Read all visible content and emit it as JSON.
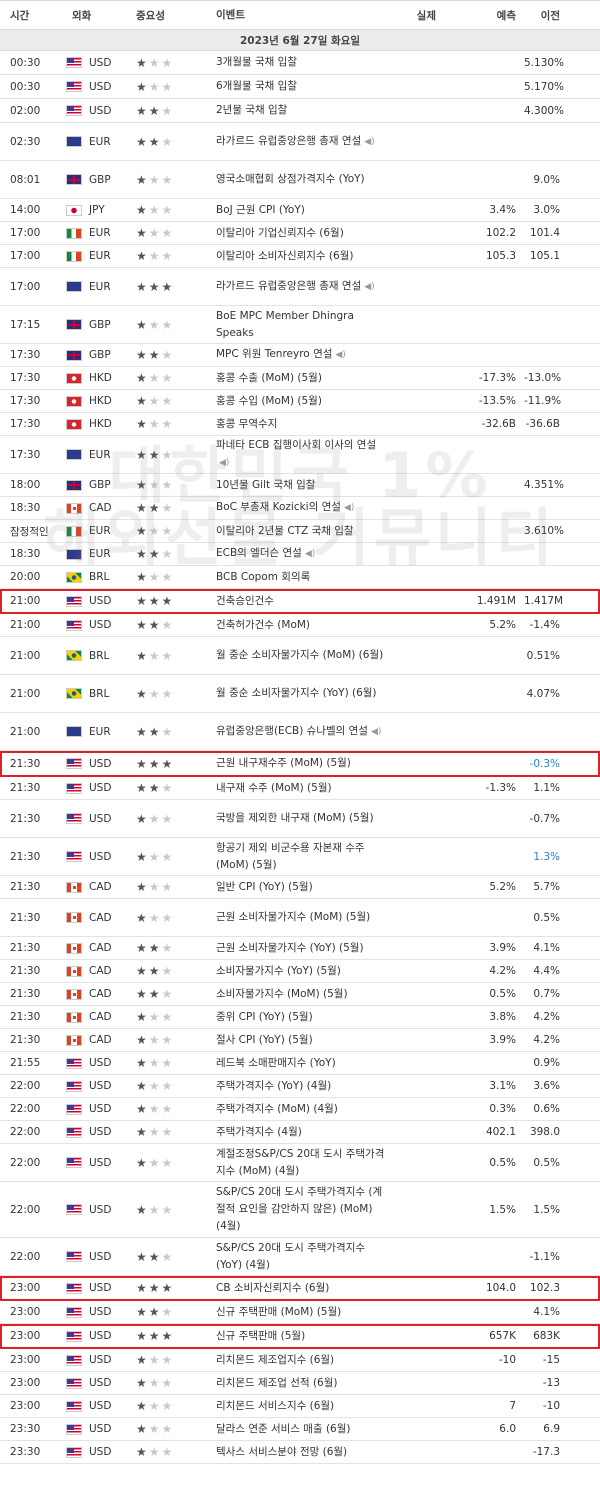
{
  "headers": {
    "time": "시간",
    "currency": "외화",
    "importance": "중요성",
    "event": "이벤트",
    "actual": "실제",
    "forecast": "예측",
    "previous": "이전"
  },
  "date": "2023년 6월 27일 화요일",
  "watermark": {
    "line1": "대한민국 1%",
    "line2": "해외선물 커뮤니티"
  },
  "rows": [
    {
      "time": "00:30",
      "flag": "us",
      "cur": "USD",
      "stars": 1,
      "event": "3개월물 국채 입찰",
      "actual": "",
      "forecast": "",
      "previous": "5.130%",
      "h": 24
    },
    {
      "time": "00:30",
      "flag": "us",
      "cur": "USD",
      "stars": 1,
      "event": "6개월물 국채 입찰",
      "actual": "",
      "forecast": "",
      "previous": "5.170%",
      "h": 24
    },
    {
      "time": "02:00",
      "flag": "us",
      "cur": "USD",
      "stars": 2,
      "event": "2년물 국채 입찰",
      "actual": "",
      "forecast": "",
      "previous": "4.300%",
      "h": 24
    },
    {
      "time": "02:30",
      "flag": "eu",
      "cur": "EUR",
      "stars": 2,
      "event": "라가르드 유럽중앙은행 총재 연설",
      "actual": "",
      "forecast": "",
      "previous": "",
      "h": 38,
      "spk": true
    },
    {
      "time": "08:01",
      "flag": "gb",
      "cur": "GBP",
      "stars": 1,
      "event": "영국소매협회 상점가격지수 (YoY)",
      "actual": "",
      "forecast": "",
      "previous": "9.0%",
      "h": 38
    },
    {
      "time": "14:00",
      "flag": "jp",
      "cur": "JPY",
      "stars": 1,
      "event": "BoJ 근원 CPI (YoY)",
      "actual": "",
      "forecast": "3.4%",
      "previous": "3.0%",
      "h": 23
    },
    {
      "time": "17:00",
      "flag": "it",
      "cur": "EUR",
      "stars": 1,
      "event": "이탈리아 기업신뢰지수 (6월)",
      "actual": "",
      "forecast": "102.2",
      "previous": "101.4",
      "h": 23
    },
    {
      "time": "17:00",
      "flag": "it",
      "cur": "EUR",
      "stars": 1,
      "event": "이탈리아 소비자신뢰지수 (6월)",
      "actual": "",
      "forecast": "105.3",
      "previous": "105.1",
      "h": 23
    },
    {
      "time": "17:00",
      "flag": "eu",
      "cur": "EUR",
      "stars": 3,
      "event": "라가르드 유럽중앙은행 총재 연설",
      "actual": "",
      "forecast": "",
      "previous": "",
      "h": 38,
      "spk": true
    },
    {
      "time": "17:15",
      "flag": "gb",
      "cur": "GBP",
      "stars": 1,
      "event": "BoE MPC Member Dhingra Speaks",
      "actual": "",
      "forecast": "",
      "previous": "",
      "h": 38
    },
    {
      "time": "17:30",
      "flag": "gb",
      "cur": "GBP",
      "stars": 2,
      "event": "MPC 위원 Tenreyro 연설",
      "actual": "",
      "forecast": "",
      "previous": "",
      "h": 23,
      "spk": true
    },
    {
      "time": "17:30",
      "flag": "hk",
      "cur": "HKD",
      "stars": 1,
      "event": "홍콩 수출 (MoM) (5월)",
      "actual": "",
      "forecast": "-17.3%",
      "previous": "-13.0%",
      "h": 23
    },
    {
      "time": "17:30",
      "flag": "hk",
      "cur": "HKD",
      "stars": 1,
      "event": "홍콩 수입 (MoM) (5월)",
      "actual": "",
      "forecast": "-13.5%",
      "previous": "-11.9%",
      "h": 23
    },
    {
      "time": "17:30",
      "flag": "hk",
      "cur": "HKD",
      "stars": 1,
      "event": "홍콩 무역수지",
      "actual": "",
      "forecast": "-32.6B",
      "previous": "-36.6B",
      "h": 23
    },
    {
      "time": "17:30",
      "flag": "eu",
      "cur": "EUR",
      "stars": 2,
      "event": "파네타 ECB 집행이사회 이사의 연설",
      "actual": "",
      "forecast": "",
      "previous": "",
      "h": 38,
      "spk": true
    },
    {
      "time": "18:00",
      "flag": "gb",
      "cur": "GBP",
      "stars": 1,
      "event": "10년물 Gilt 국채 입찰",
      "actual": "",
      "forecast": "",
      "previous": "4.351%",
      "h": 23
    },
    {
      "time": "18:30",
      "flag": "ca",
      "cur": "CAD",
      "stars": 2,
      "event": "BoC 부총재 Kozicki의 연설",
      "actual": "",
      "forecast": "",
      "previous": "",
      "h": 23,
      "spk": true
    },
    {
      "time": "잠정적인",
      "flag": "it",
      "cur": "EUR",
      "stars": 1,
      "event": "이탈리아 2년물 CTZ 국채 입찰",
      "actual": "",
      "forecast": "",
      "previous": "3.610%",
      "h": 23
    },
    {
      "time": "18:30",
      "flag": "eu",
      "cur": "EUR",
      "stars": 2,
      "event": "ECB의 엘더슨 연설",
      "actual": "",
      "forecast": "",
      "previous": "",
      "h": 23,
      "spk": true
    },
    {
      "time": "20:00",
      "flag": "br",
      "cur": "BRL",
      "stars": 1,
      "event": "BCB Copom 회의록",
      "actual": "",
      "forecast": "",
      "previous": "",
      "h": 23
    },
    {
      "time": "21:00",
      "flag": "us",
      "cur": "USD",
      "stars": 3,
      "event": "건축승인건수",
      "actual": "",
      "forecast": "1.491M",
      "previous": "1.417M",
      "h": 25,
      "hl": true
    },
    {
      "time": "21:00",
      "flag": "us",
      "cur": "USD",
      "stars": 2,
      "event": "건축허가건수 (MoM)",
      "actual": "",
      "forecast": "5.2%",
      "previous": "-1.4%",
      "h": 23
    },
    {
      "time": "21:00",
      "flag": "br",
      "cur": "BRL",
      "stars": 1,
      "event": "월 중순 소비자물가지수 (MoM) (6월)",
      "actual": "",
      "forecast": "",
      "previous": "0.51%",
      "h": 38
    },
    {
      "time": "21:00",
      "flag": "br",
      "cur": "BRL",
      "stars": 1,
      "event": "월 중순 소비자물가지수 (YoY) (6월)",
      "actual": "",
      "forecast": "",
      "previous": "4.07%",
      "h": 38
    },
    {
      "time": "21:00",
      "flag": "eu",
      "cur": "EUR",
      "stars": 2,
      "event": "유럽중앙은행(ECB) 슈나벨의 연설",
      "actual": "",
      "forecast": "",
      "previous": "",
      "h": 38,
      "spk": true
    },
    {
      "time": "21:30",
      "flag": "us",
      "cur": "USD",
      "stars": 3,
      "event": "근원 내구재수주 (MoM) (5월)",
      "actual": "",
      "forecast": "",
      "previous": "-0.3%",
      "prevBlue": true,
      "h": 26,
      "hl": true
    },
    {
      "time": "21:30",
      "flag": "us",
      "cur": "USD",
      "stars": 2,
      "event": "내구재 수주 (MoM) (5월)",
      "actual": "",
      "forecast": "-1.3%",
      "previous": "1.1%",
      "h": 23
    },
    {
      "time": "21:30",
      "flag": "us",
      "cur": "USD",
      "stars": 1,
      "event": "국방을 제외한 내구재 (MoM) (5월)",
      "actual": "",
      "forecast": "",
      "previous": "-0.7%",
      "h": 38
    },
    {
      "time": "21:30",
      "flag": "us",
      "cur": "USD",
      "stars": 1,
      "event": "항공기 제외 비군수용 자본재 수주 (MoM) (5월)",
      "actual": "",
      "forecast": "",
      "previous": "1.3%",
      "prevBlue": true,
      "h": 38
    },
    {
      "time": "21:30",
      "flag": "ca",
      "cur": "CAD",
      "stars": 1,
      "event": "일반 CPI (YoY) (5월)",
      "actual": "",
      "forecast": "5.2%",
      "previous": "5.7%",
      "h": 23
    },
    {
      "time": "21:30",
      "flag": "ca",
      "cur": "CAD",
      "stars": 1,
      "event": "근원 소비자물가지수 (MoM) (5월)",
      "actual": "",
      "forecast": "",
      "previous": "0.5%",
      "h": 38
    },
    {
      "time": "21:30",
      "flag": "ca",
      "cur": "CAD",
      "stars": 2,
      "event": "근원 소비자물가지수 (YoY) (5월)",
      "actual": "",
      "forecast": "3.9%",
      "previous": "4.1%",
      "h": 23
    },
    {
      "time": "21:30",
      "flag": "ca",
      "cur": "CAD",
      "stars": 2,
      "event": "소비자물가지수 (YoY) (5월)",
      "actual": "",
      "forecast": "4.2%",
      "previous": "4.4%",
      "h": 23
    },
    {
      "time": "21:30",
      "flag": "ca",
      "cur": "CAD",
      "stars": 2,
      "event": "소비자물가지수 (MoM) (5월)",
      "actual": "",
      "forecast": "0.5%",
      "previous": "0.7%",
      "h": 23
    },
    {
      "time": "21:30",
      "flag": "ca",
      "cur": "CAD",
      "stars": 1,
      "event": "중위 CPI (YoY) (5월)",
      "actual": "",
      "forecast": "3.8%",
      "previous": "4.2%",
      "h": 23
    },
    {
      "time": "21:30",
      "flag": "ca",
      "cur": "CAD",
      "stars": 1,
      "event": "절사 CPI (YoY) (5월)",
      "actual": "",
      "forecast": "3.9%",
      "previous": "4.2%",
      "h": 23
    },
    {
      "time": "21:55",
      "flag": "us",
      "cur": "USD",
      "stars": 1,
      "event": "레드북 소매판매지수 (YoY)",
      "actual": "",
      "forecast": "",
      "previous": "0.9%",
      "h": 23
    },
    {
      "time": "22:00",
      "flag": "us",
      "cur": "USD",
      "stars": 1,
      "event": "주택가격지수 (YoY) (4월)",
      "actual": "",
      "forecast": "3.1%",
      "previous": "3.6%",
      "h": 23
    },
    {
      "time": "22:00",
      "flag": "us",
      "cur": "USD",
      "stars": 1,
      "event": "주택가격지수 (MoM) (4월)",
      "actual": "",
      "forecast": "0.3%",
      "previous": "0.6%",
      "h": 23
    },
    {
      "time": "22:00",
      "flag": "us",
      "cur": "USD",
      "stars": 1,
      "event": "주택가격지수 (4월)",
      "actual": "",
      "forecast": "402.1",
      "previous": "398.0",
      "h": 23
    },
    {
      "time": "22:00",
      "flag": "us",
      "cur": "USD",
      "stars": 1,
      "event": "계절조정S&P/CS 20대 도시 주택가격지수 (MoM) (4월)",
      "actual": "",
      "forecast": "0.5%",
      "previous": "0.5%",
      "h": 38
    },
    {
      "time": "22:00",
      "flag": "us",
      "cur": "USD",
      "stars": 1,
      "event": "S&P/CS 20대 도시 주택가격지수 (계절적 요인을 감안하지 않은) (MoM) (4월)",
      "actual": "",
      "forecast": "1.5%",
      "previous": "1.5%",
      "h": 56
    },
    {
      "time": "22:00",
      "flag": "us",
      "cur": "USD",
      "stars": 2,
      "event": "S&P/CS 20대 도시 주택가격지수 (YoY) (4월)",
      "actual": "",
      "forecast": "",
      "previous": "-1.1%",
      "h": 38
    },
    {
      "time": "23:00",
      "flag": "us",
      "cur": "USD",
      "stars": 3,
      "event": "CB 소비자신뢰지수 (6월)",
      "actual": "",
      "forecast": "104.0",
      "previous": "102.3",
      "h": 25,
      "hl": true
    },
    {
      "time": "23:00",
      "flag": "us",
      "cur": "USD",
      "stars": 2,
      "event": "신규 주택판매 (MoM) (5월)",
      "actual": "",
      "forecast": "",
      "previous": "4.1%",
      "h": 23
    },
    {
      "time": "23:00",
      "flag": "us",
      "cur": "USD",
      "stars": 3,
      "event": "신규 주택판매 (5월)",
      "actual": "",
      "forecast": "657K",
      "previous": "683K",
      "h": 25,
      "hl": true
    },
    {
      "time": "23:00",
      "flag": "us",
      "cur": "USD",
      "stars": 1,
      "event": "리치몬드 제조업지수 (6월)",
      "actual": "",
      "forecast": "-10",
      "previous": "-15",
      "h": 23
    },
    {
      "time": "23:00",
      "flag": "us",
      "cur": "USD",
      "stars": 1,
      "event": "리치몬드 제조업 선적 (6월)",
      "actual": "",
      "forecast": "",
      "previous": "-13",
      "h": 23
    },
    {
      "time": "23:00",
      "flag": "us",
      "cur": "USD",
      "stars": 1,
      "event": "리치몬드 서비스지수 (6월)",
      "actual": "",
      "forecast": "7",
      "previous": "-10",
      "h": 23
    },
    {
      "time": "23:30",
      "flag": "us",
      "cur": "USD",
      "stars": 1,
      "event": "달라스 연준 서비스 매출 (6월)",
      "actual": "",
      "forecast": "6.0",
      "previous": "6.9",
      "h": 23
    },
    {
      "time": "23:30",
      "flag": "us",
      "cur": "USD",
      "stars": 1,
      "event": "텍사스 서비스분야 전망 (6월)",
      "actual": "",
      "forecast": "",
      "previous": "-17.3",
      "h": 23
    }
  ]
}
